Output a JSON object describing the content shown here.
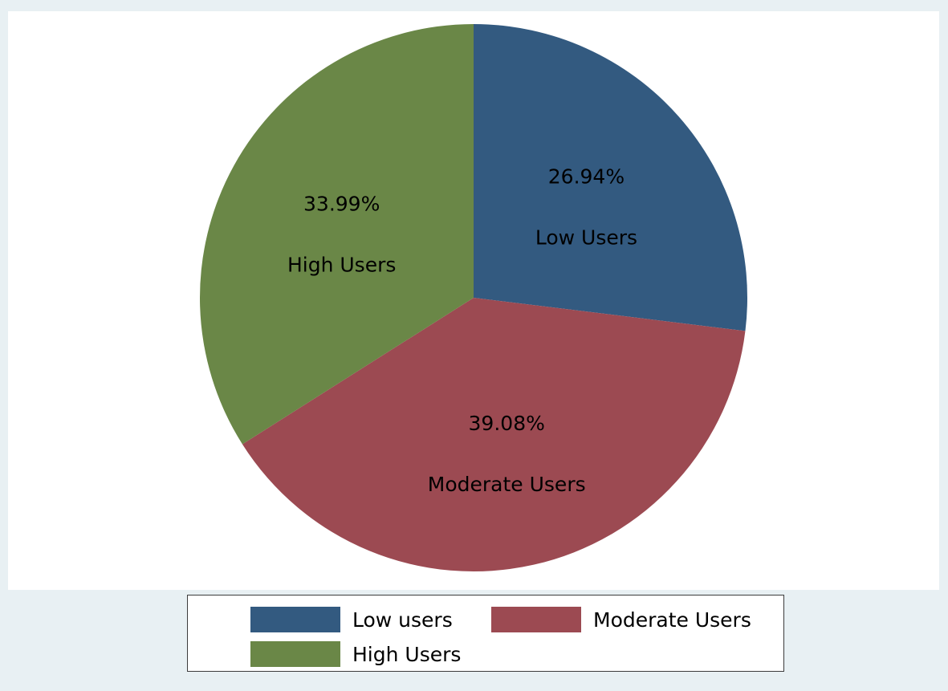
{
  "chart_data": {
    "type": "pie",
    "slices": [
      {
        "category": "Low users",
        "slice_label": "Low Users",
        "value": 26.94,
        "value_label": "26.94%",
        "color": "#335a80"
      },
      {
        "category": "Moderate Users",
        "slice_label": "Moderate Users",
        "value": 39.08,
        "value_label": "39.08%",
        "color": "#9c4a52"
      },
      {
        "category": "High Users",
        "slice_label": "High Users",
        "value": 33.99,
        "value_label": "33.99%",
        "color": "#6a8747"
      }
    ],
    "start_angle": "12 o'clock",
    "direction": "clockwise",
    "legend_position": "bottom",
    "legend": [
      {
        "label": "Low users",
        "color": "#335a80"
      },
      {
        "label": "Moderate Users",
        "color": "#9c4a52"
      },
      {
        "label": "High Users",
        "color": "#6a8747"
      }
    ]
  },
  "colors": {
    "outer_background": "#e8f0f3",
    "plot_background": "#ffffff"
  }
}
